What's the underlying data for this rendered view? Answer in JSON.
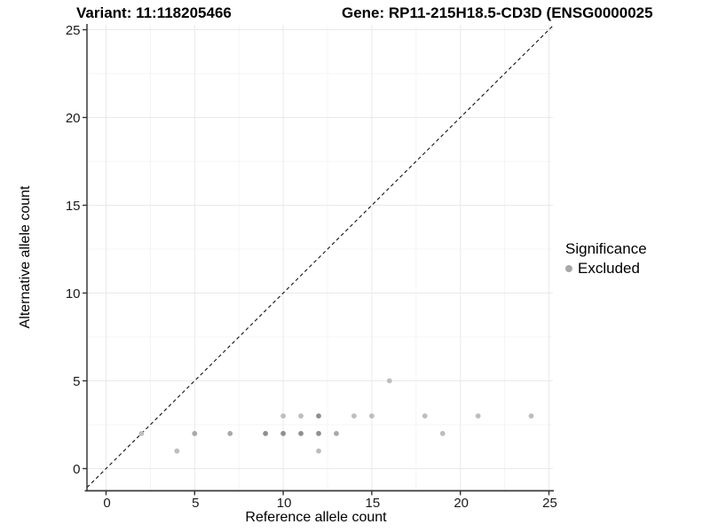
{
  "chart_data": {
    "type": "scatter",
    "title_left": "Variant: 11:118205466",
    "title_right": "Gene: RP11-215H18.5-CD3D (ENSG0000025",
    "xlabel": "Reference allele count",
    "ylabel": "Alternative allele count",
    "x_ticks": [
      0,
      5,
      10,
      15,
      20,
      25
    ],
    "y_ticks": [
      0,
      5,
      10,
      15,
      20,
      25
    ],
    "minor_step": 2.5,
    "xlim": [
      -1.1,
      25.25
    ],
    "ylim": [
      -1.25,
      25.3
    ],
    "grid": true,
    "diagonal": {
      "style": "dashed",
      "meaning": "y = x identity line",
      "color": "#111111"
    },
    "legend": {
      "title": "Significance",
      "position": "right",
      "items": [
        {
          "label": "Excluded",
          "color": "#a8a8a8"
        }
      ]
    },
    "series": [
      {
        "name": "Excluded",
        "points": [
          {
            "x": 2,
            "y": 2,
            "shade": 1
          },
          {
            "x": 4,
            "y": 1,
            "shade": 1
          },
          {
            "x": 5,
            "y": 2,
            "shade": 2
          },
          {
            "x": 7,
            "y": 2,
            "shade": 2
          },
          {
            "x": 9,
            "y": 2,
            "shade": 3
          },
          {
            "x": 10,
            "y": 2,
            "shade": 3
          },
          {
            "x": 11,
            "y": 2,
            "shade": 3
          },
          {
            "x": 12,
            "y": 2,
            "shade": 3
          },
          {
            "x": 13,
            "y": 2,
            "shade": 2
          },
          {
            "x": 19,
            "y": 2,
            "shade": 1
          },
          {
            "x": 12,
            "y": 1,
            "shade": 1
          },
          {
            "x": 10,
            "y": 3,
            "shade": 1
          },
          {
            "x": 11,
            "y": 3,
            "shade": 1
          },
          {
            "x": 12,
            "y": 3,
            "shade": 3
          },
          {
            "x": 14,
            "y": 3,
            "shade": 1
          },
          {
            "x": 15,
            "y": 3,
            "shade": 1
          },
          {
            "x": 18,
            "y": 3,
            "shade": 1
          },
          {
            "x": 21,
            "y": 3,
            "shade": 1
          },
          {
            "x": 24,
            "y": 3,
            "shade": 1
          },
          {
            "x": 16,
            "y": 5,
            "shade": 1
          }
        ]
      }
    ],
    "style": {
      "point_shades": {
        "1": "#bdbdbd",
        "2": "#a9a9a9",
        "3": "#8f8f8f"
      },
      "grid_major": "#e9e9e9",
      "grid_minor": "#f4f4f4",
      "axis_color": "#3a3a3a",
      "tick_color": "#333333",
      "background": "#ffffff"
    }
  }
}
